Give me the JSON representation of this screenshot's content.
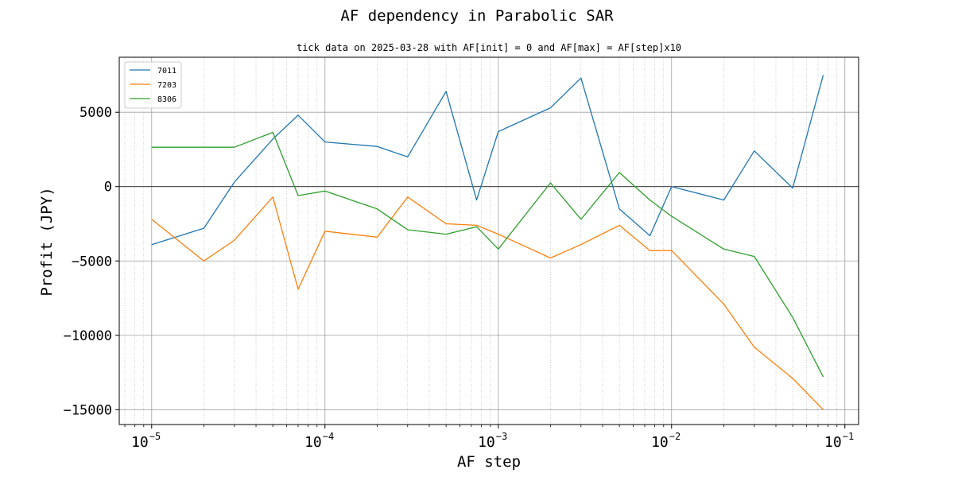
{
  "chart_data": {
    "type": "line",
    "title": "AF dependency in Parabolic SAR",
    "subtitle": "tick data on 2025-03-28 with AF[init] = 0 and AF[max] = AF[step]x10",
    "xlabel": "AF step",
    "ylabel": "Profit (JPY)",
    "xscale": "log",
    "xlim": [
      6.5e-06,
      0.12
    ],
    "ylim": [
      -16000,
      8700
    ],
    "grid": true,
    "legend_position": "top-left",
    "x": [
      1e-05,
      2e-05,
      3e-05,
      5e-05,
      7e-05,
      0.0001,
      0.0002,
      0.0003,
      0.0005,
      0.00075,
      0.001,
      0.002,
      0.003,
      0.005,
      0.0075,
      0.01,
      0.02,
      0.03,
      0.05,
      0.075
    ],
    "series": [
      {
        "name": "7011",
        "color": "#1f77b4",
        "values": [
          -3900,
          -2800,
          300,
          3200,
          4800,
          3000,
          2700,
          2000,
          6400,
          -900,
          3700,
          5300,
          7300,
          -1500,
          -3300,
          0,
          -900,
          2400,
          -100,
          7500
        ]
      },
      {
        "name": "7203",
        "color": "#ff7f0e",
        "values": [
          -2200,
          -5000,
          -3600,
          -700,
          -6900,
          -3000,
          -3400,
          -700,
          -2500,
          -2600,
          -3200,
          -4800,
          -3900,
          -2600,
          -4300,
          -4300,
          -7900,
          -10800,
          -12900,
          -15000
        ]
      },
      {
        "name": "8306",
        "color": "#2ca02c",
        "values": [
          2650,
          2650,
          2650,
          3650,
          -600,
          -300,
          -1500,
          -2900,
          -3200,
          -2700,
          -4200,
          250,
          -2200,
          950,
          -900,
          -2000,
          -4200,
          -4700,
          -8800,
          -12800
        ]
      }
    ],
    "y_ticks": [
      {
        "value": 5000,
        "label": "5000"
      },
      {
        "value": 0,
        "label": "0"
      },
      {
        "value": -5000,
        "label": "−5000"
      },
      {
        "value": -10000,
        "label": "−10000"
      },
      {
        "value": -15000,
        "label": "−15000"
      }
    ],
    "x_ticks": [
      {
        "value": 1e-05,
        "base": "10",
        "exp": "−5"
      },
      {
        "value": 0.0001,
        "base": "10",
        "exp": "−4"
      },
      {
        "value": 0.001,
        "base": "10",
        "exp": "−3"
      },
      {
        "value": 0.01,
        "base": "10",
        "exp": "−2"
      },
      {
        "value": 0.1,
        "base": "10",
        "exp": "−1"
      }
    ]
  }
}
